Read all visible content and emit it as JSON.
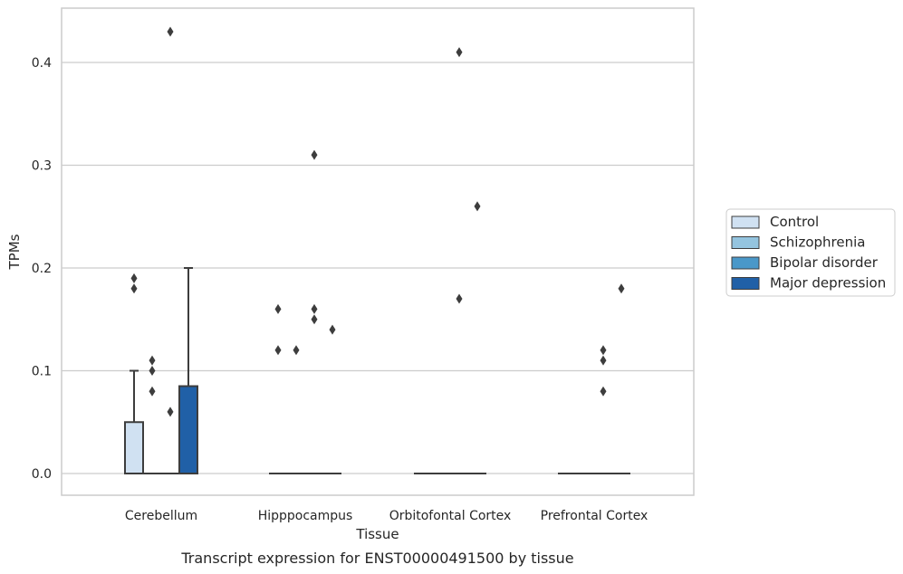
{
  "chart_data": {
    "type": "box",
    "caption": "Transcript expression for ENST00000491500 by tissue",
    "xlabel": "Tissue",
    "ylabel": "TPMs",
    "ylim": [
      -0.021,
      0.453
    ],
    "yticks": [
      0.0,
      0.1,
      0.2,
      0.3,
      0.4
    ],
    "ytick_labels": [
      "0.0",
      "0.1",
      "0.2",
      "0.3",
      "0.4"
    ],
    "grid": "horizontal",
    "legend_position": "right",
    "categories": [
      "Cerebellum",
      "Hipppocampus",
      "Orbitofontal Cortex",
      "Prefrontal Cortex"
    ],
    "series": [
      {
        "name": "Control",
        "color": "#d0e1f2",
        "boxes": [
          {
            "q1": 0.0,
            "median": 0.0,
            "q3": 0.05,
            "whisker_low": 0.0,
            "whisker_high": 0.1,
            "outliers": [
              0.18,
              0.19
            ]
          },
          {
            "q1": 0.0,
            "median": 0.0,
            "q3": 0.0,
            "whisker_low": 0.0,
            "whisker_high": 0.0,
            "outliers": [
              0.12,
              0.16
            ]
          },
          {
            "q1": 0.0,
            "median": 0.0,
            "q3": 0.0,
            "whisker_low": 0.0,
            "whisker_high": 0.0,
            "outliers": []
          },
          {
            "q1": 0.0,
            "median": 0.0,
            "q3": 0.0,
            "whisker_low": 0.0,
            "whisker_high": 0.0,
            "outliers": []
          }
        ]
      },
      {
        "name": "Schizophrenia",
        "color": "#94c4df",
        "boxes": [
          {
            "q1": 0.0,
            "median": 0.0,
            "q3": 0.0,
            "whisker_low": 0.0,
            "whisker_high": 0.0,
            "outliers": [
              0.08,
              0.1,
              0.11
            ]
          },
          {
            "q1": 0.0,
            "median": 0.0,
            "q3": 0.0,
            "whisker_low": 0.0,
            "whisker_high": 0.0,
            "outliers": [
              0.12
            ]
          },
          {
            "q1": 0.0,
            "median": 0.0,
            "q3": 0.0,
            "whisker_low": 0.0,
            "whisker_high": 0.0,
            "outliers": []
          },
          {
            "q1": 0.0,
            "median": 0.0,
            "q3": 0.0,
            "whisker_low": 0.0,
            "whisker_high": 0.0,
            "outliers": []
          }
        ]
      },
      {
        "name": "Bipolar disorder",
        "color": "#4a98c9",
        "boxes": [
          {
            "q1": 0.0,
            "median": 0.0,
            "q3": 0.0,
            "whisker_low": 0.0,
            "whisker_high": 0.0,
            "outliers": [
              0.06,
              0.43
            ]
          },
          {
            "q1": 0.0,
            "median": 0.0,
            "q3": 0.0,
            "whisker_low": 0.0,
            "whisker_high": 0.0,
            "outliers": [
              0.15,
              0.16,
              0.31
            ]
          },
          {
            "q1": 0.0,
            "median": 0.0,
            "q3": 0.0,
            "whisker_low": 0.0,
            "whisker_high": 0.0,
            "outliers": [
              0.17,
              0.41
            ]
          },
          {
            "q1": 0.0,
            "median": 0.0,
            "q3": 0.0,
            "whisker_low": 0.0,
            "whisker_high": 0.0,
            "outliers": [
              0.08,
              0.11,
              0.12
            ]
          }
        ]
      },
      {
        "name": "Major depression",
        "color": "#2060a7",
        "boxes": [
          {
            "q1": 0.0,
            "median": 0.0,
            "q3": 0.085,
            "whisker_low": 0.0,
            "whisker_high": 0.2,
            "outliers": []
          },
          {
            "q1": 0.0,
            "median": 0.0,
            "q3": 0.0,
            "whisker_low": 0.0,
            "whisker_high": 0.0,
            "outliers": [
              0.14
            ]
          },
          {
            "q1": 0.0,
            "median": 0.0,
            "q3": 0.0,
            "whisker_low": 0.0,
            "whisker_high": 0.0,
            "outliers": [
              0.26
            ]
          },
          {
            "q1": 0.0,
            "median": 0.0,
            "q3": 0.0,
            "whisker_low": 0.0,
            "whisker_high": 0.0,
            "outliers": [
              0.18
            ]
          }
        ]
      }
    ]
  },
  "colors": {
    "grid": "#cccccc",
    "axes_frame": "#cccccc",
    "box_edge": "#3d3d3d",
    "outlier": "#3d3d3d",
    "legend_border": "#cccccc"
  }
}
